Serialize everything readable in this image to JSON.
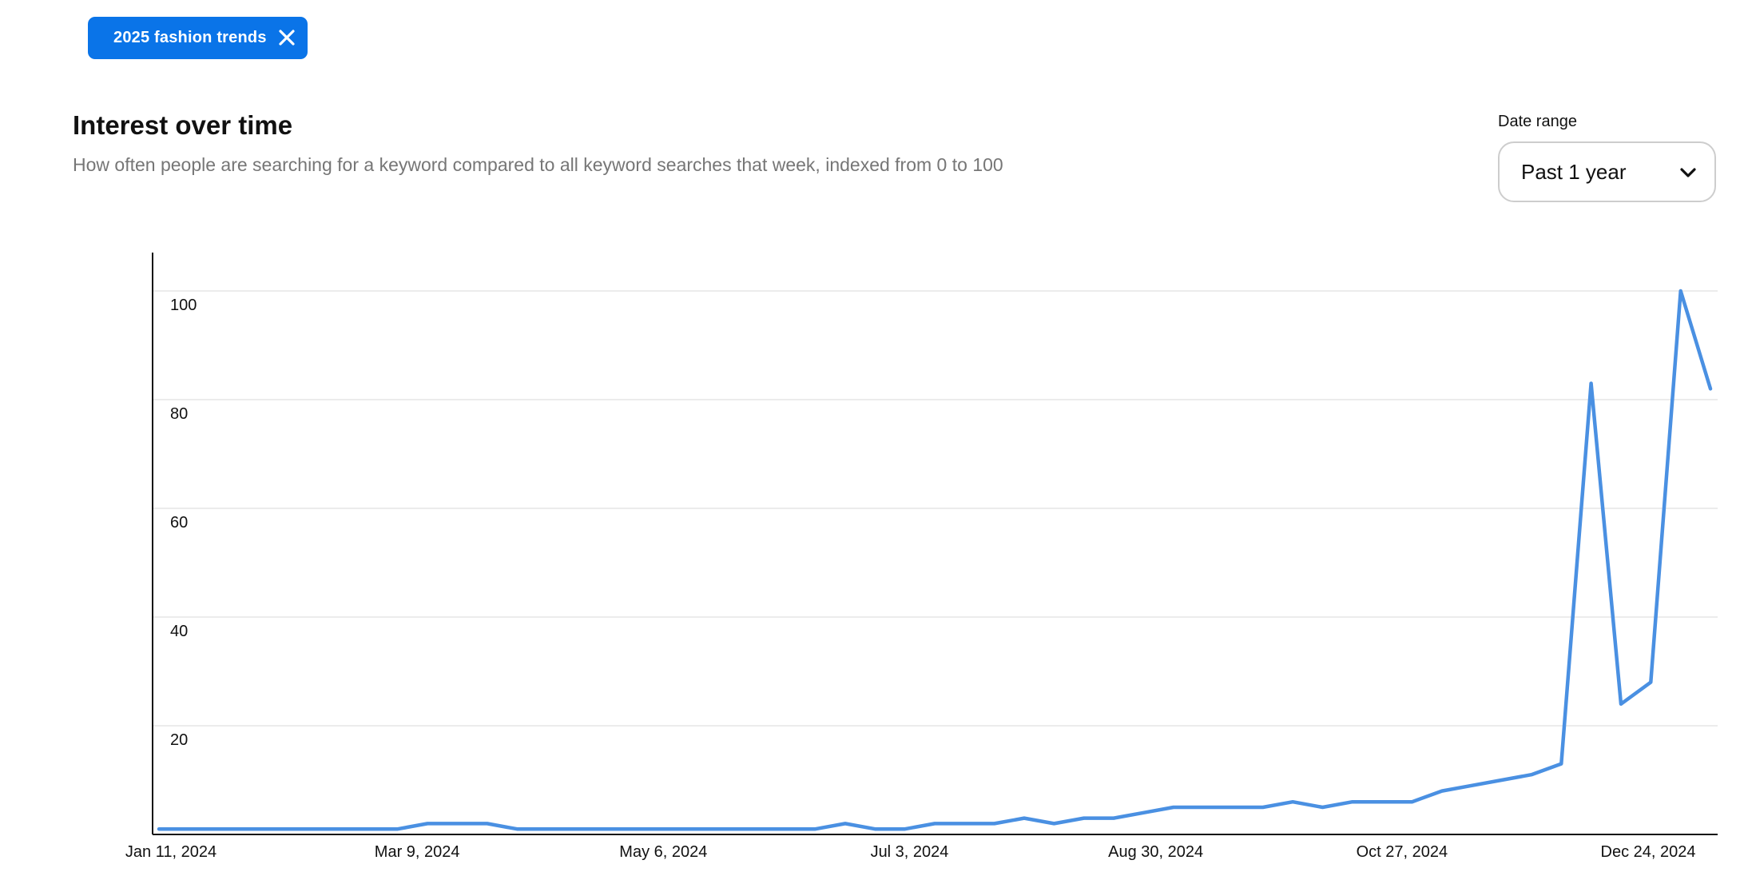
{
  "keyword_chip": {
    "label": "2025 fashion trends",
    "close_icon": "close-icon"
  },
  "header": {
    "title": "Interest over time",
    "subtitle": "How often people are searching for a keyword compared to all keyword searches that week, indexed from 0 to 100"
  },
  "date_range": {
    "label": "Date range",
    "selected": "Past 1 year",
    "icon": "chevron-down-icon"
  },
  "colors": {
    "accent": "#0a74e8",
    "line": "#4a90e2",
    "grid": "#e6e6e6",
    "axis": "#111111"
  },
  "chart_data": {
    "type": "line",
    "title": "Interest over time",
    "xlabel": "",
    "ylabel": "",
    "ylim": [
      0,
      100
    ],
    "yticks": [
      20,
      40,
      60,
      80,
      100
    ],
    "x_tick_labels": [
      "Jan 11, 2024",
      "Mar 9, 2024",
      "May 6, 2024",
      "Jul 3, 2024",
      "Aug 30, 2024",
      "Oct 27, 2024",
      "Dec 24, 2024"
    ],
    "grid": true,
    "legend": "none",
    "series": [
      {
        "values": [
          1,
          1,
          1,
          1,
          1,
          1,
          1,
          1,
          1,
          2,
          2,
          2,
          1,
          1,
          1,
          1,
          1,
          1,
          1,
          1,
          1,
          1,
          1,
          2,
          1,
          1,
          2,
          2,
          2,
          3,
          2,
          3,
          3,
          4,
          5,
          5,
          5,
          5,
          6,
          5,
          6,
          6,
          6,
          8,
          9,
          10,
          11,
          13,
          83,
          24,
          28,
          100,
          82
        ]
      }
    ]
  }
}
